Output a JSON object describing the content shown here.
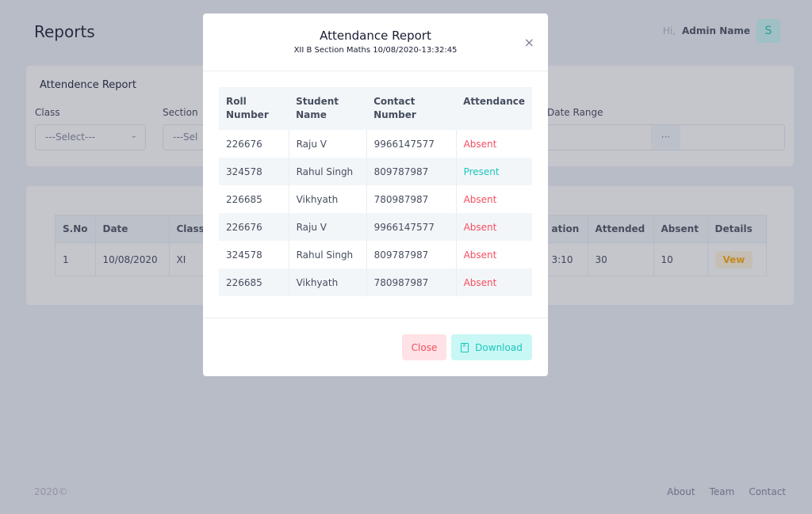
{
  "header": {
    "title": "Reports",
    "greeting": "Hi,",
    "user_name": "Admin Name",
    "avatar_letter": "S"
  },
  "filter_card": {
    "title": "Attendence Report",
    "class_label": "Class",
    "class_value": "---Select---",
    "section_label": "Section",
    "section_value": "---Sel",
    "date_range_label": "Date Range",
    "date_range_button": "···"
  },
  "summary_table": {
    "headers": [
      "S.No",
      "Date",
      "Class",
      "ation",
      "Attended",
      "Absent",
      "Details"
    ],
    "row": [
      "1",
      "10/08/2020",
      "XI",
      "3:10",
      "30",
      "10"
    ],
    "action_label": "Vew"
  },
  "footer": {
    "copyright": "2020©",
    "links": [
      "About",
      "Team",
      "Contact"
    ]
  },
  "modal": {
    "title": "Attendance Report",
    "subtitle": "XII B Section Maths 10/08/2020-13:32:45",
    "close_glyph": "×",
    "headers": [
      "Roll Number",
      "Student Name",
      "Contact Number",
      "Attendance"
    ],
    "rows": [
      [
        "226676",
        "Raju V",
        "9966147577",
        "Absent"
      ],
      [
        "324578",
        "Rahul Singh",
        "809787987",
        "Present"
      ],
      [
        "226685",
        "Vikhyath",
        "780987987",
        "Absent"
      ],
      [
        "226676",
        "Raju V",
        "9966147577",
        "Absent"
      ],
      [
        "324578",
        "Rahul Singh",
        "809787987",
        "Absent"
      ],
      [
        "226685",
        "Vikhyath",
        "780987987",
        "Absent"
      ]
    ],
    "close_button": "Close",
    "download_button": "Download"
  },
  "colors": {
    "absent": "#f64e60",
    "present": "#1bc5bd",
    "overlay": "#464e5f"
  }
}
